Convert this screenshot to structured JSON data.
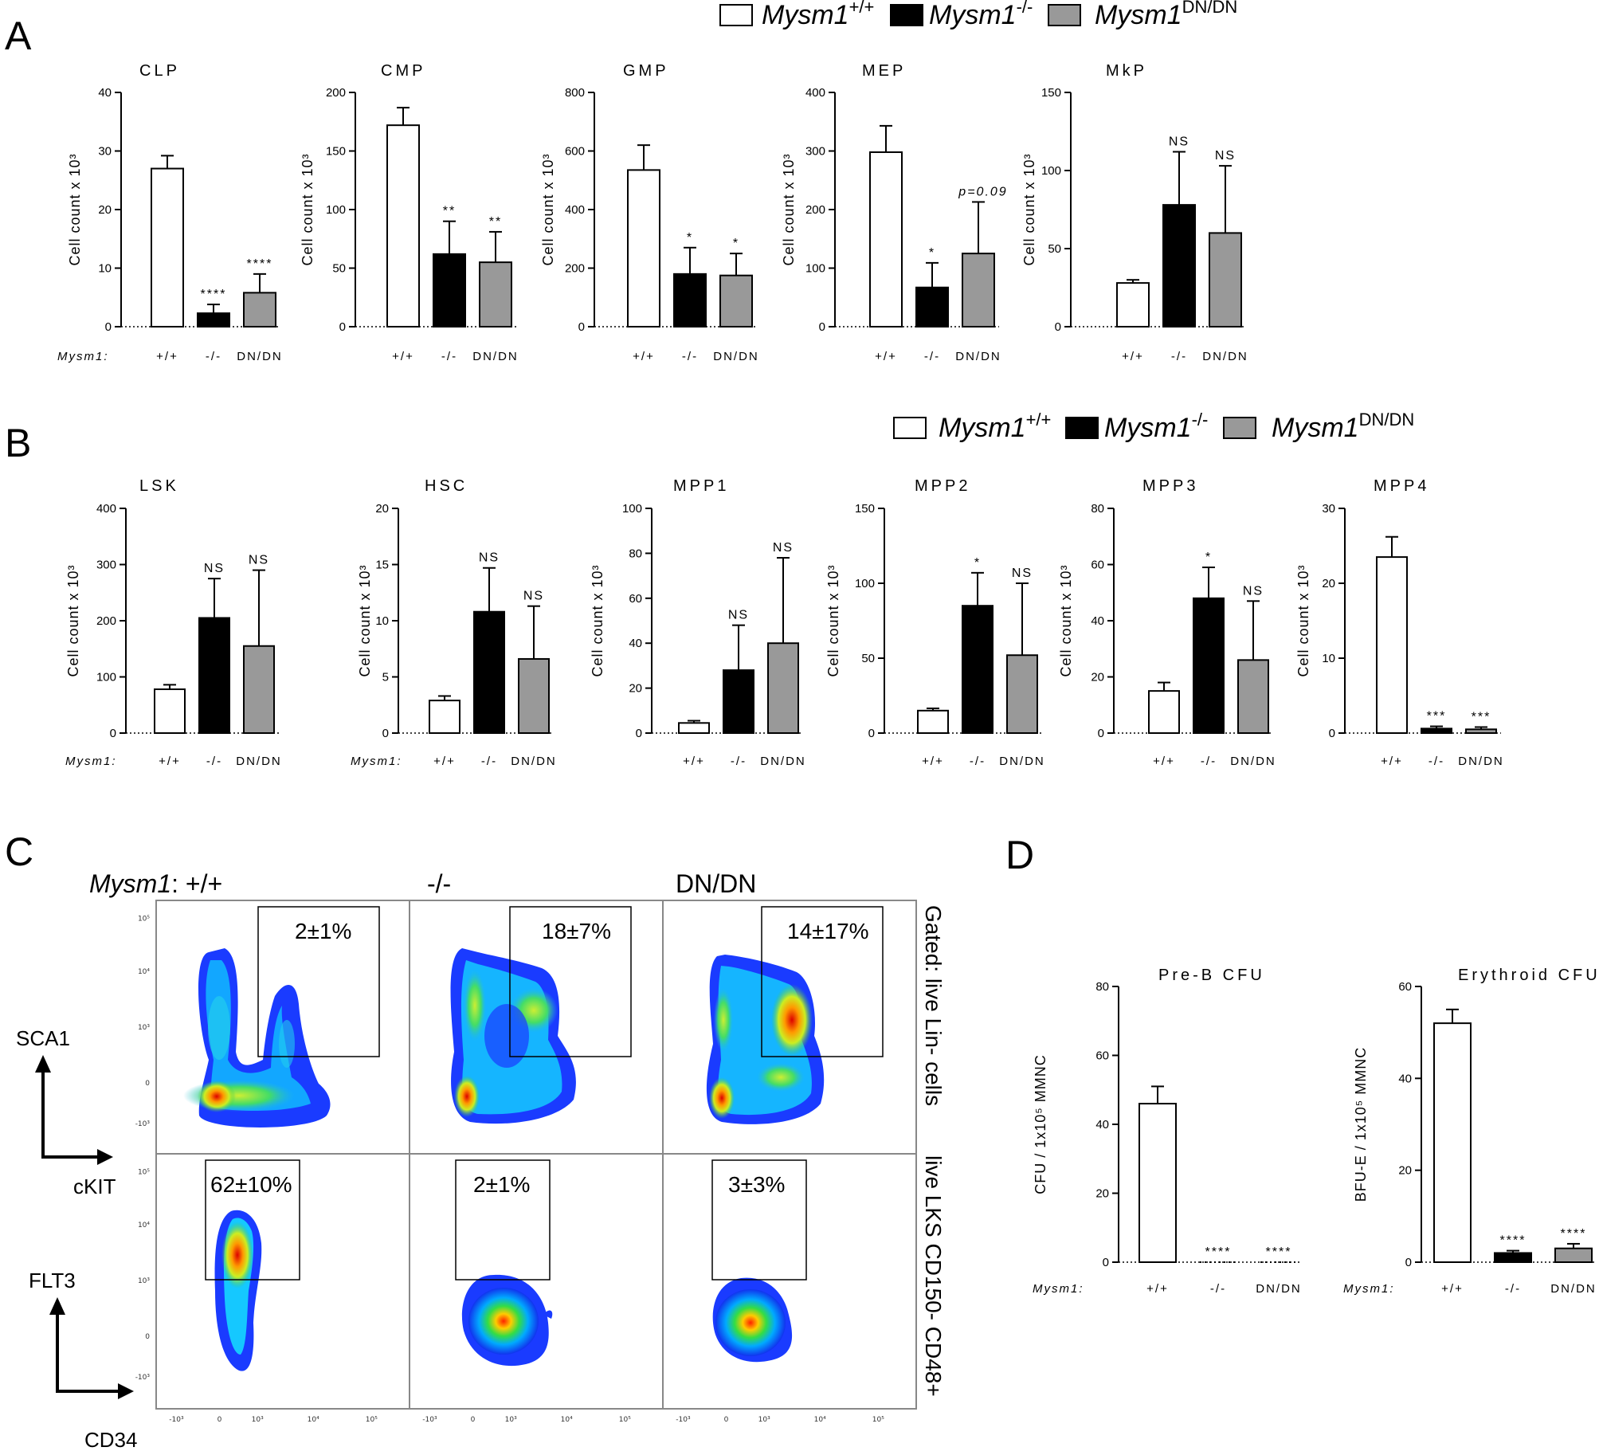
{
  "panel_labels": {
    "A": "A",
    "B": "B",
    "C": "C",
    "D": "D"
  },
  "legend": {
    "gene": "Mysm1",
    "items": [
      {
        "sup": "+/+",
        "color": "#ffffff"
      },
      {
        "sup": "-/-",
        "color": "#000000"
      },
      {
        "sup": "DN/DN",
        "color": "#999999"
      }
    ]
  },
  "genotype_prefix": "Mysm1:",
  "colors": {
    "wt": "#ffffff",
    "ko": "#000000",
    "dn": "#999999"
  },
  "chart_data": [
    {
      "panel": "A",
      "type": "bar",
      "title": "CLP",
      "ylabel": "Cell count x 10³",
      "ylim": [
        0,
        40
      ],
      "yticks": [
        0,
        10,
        20,
        30,
        40
      ],
      "categories": [
        "+/+",
        "-/-",
        "DN/DN"
      ],
      "values": [
        27,
        2.3,
        5.8
      ],
      "errors": [
        2.2,
        1.5,
        3.2
      ],
      "annotations": [
        "",
        "****",
        "****"
      ],
      "show_prefix": true
    },
    {
      "panel": "A",
      "type": "bar",
      "title": "CMP",
      "ylabel": "Cell count x 10³",
      "ylim": [
        0,
        200
      ],
      "yticks": [
        0,
        50,
        100,
        150,
        200
      ],
      "categories": [
        "+/+",
        "-/-",
        "DN/DN"
      ],
      "values": [
        172,
        62,
        55
      ],
      "errors": [
        15,
        28,
        26
      ],
      "annotations": [
        "",
        "**",
        "**"
      ],
      "show_prefix": false
    },
    {
      "panel": "A",
      "type": "bar",
      "title": "GMP",
      "ylabel": "Cell count x 10³",
      "ylim": [
        0,
        800
      ],
      "yticks": [
        0,
        200,
        400,
        600,
        800
      ],
      "categories": [
        "+/+",
        "-/-",
        "DN/DN"
      ],
      "values": [
        535,
        180,
        175
      ],
      "errors": [
        85,
        90,
        75
      ],
      "annotations": [
        "",
        "*",
        "*"
      ],
      "show_prefix": false
    },
    {
      "panel": "A",
      "type": "bar",
      "title": "MEP",
      "ylabel": "Cell count x 10³",
      "ylim": [
        0,
        400
      ],
      "yticks": [
        0,
        100,
        200,
        300,
        400
      ],
      "categories": [
        "+/+",
        "-/-",
        "DN/DN"
      ],
      "values": [
        298,
        67,
        125
      ],
      "errors": [
        45,
        42,
        88
      ],
      "annotations": [
        "",
        "*",
        "p=0.09"
      ],
      "show_prefix": false
    },
    {
      "panel": "A",
      "type": "bar",
      "title": "MkP",
      "ylabel": "Cell count x 10³",
      "ylim": [
        0,
        150
      ],
      "yticks": [
        0,
        50,
        100,
        150
      ],
      "categories": [
        "+/+",
        "-/-",
        "DN/DN"
      ],
      "values": [
        28,
        78,
        60
      ],
      "errors": [
        2,
        34,
        43
      ],
      "annotations": [
        "",
        "NS",
        "NS"
      ],
      "show_prefix": false
    },
    {
      "panel": "B",
      "type": "bar",
      "title": "LSK",
      "ylabel": "Cell count x 10³",
      "ylim": [
        0,
        400
      ],
      "yticks": [
        0,
        100,
        200,
        300,
        400
      ],
      "categories": [
        "+/+",
        "-/-",
        "DN/DN"
      ],
      "values": [
        78,
        205,
        155
      ],
      "errors": [
        8,
        70,
        135
      ],
      "annotations": [
        "",
        "NS",
        "NS"
      ],
      "show_prefix": true
    },
    {
      "panel": "B",
      "type": "bar",
      "title": "HSC",
      "ylabel": "Cell count x 10³",
      "ylim": [
        0,
        20
      ],
      "yticks": [
        0,
        5,
        10,
        15,
        20
      ],
      "categories": [
        "+/+",
        "-/-",
        "DN/DN"
      ],
      "values": [
        2.9,
        10.8,
        6.6
      ],
      "errors": [
        0.4,
        3.9,
        4.7
      ],
      "annotations": [
        "",
        "NS",
        "NS"
      ],
      "show_prefix": true
    },
    {
      "panel": "B",
      "type": "bar",
      "title": "MPP1",
      "ylabel": "Cell count x 10³",
      "ylim": [
        0,
        100
      ],
      "yticks": [
        0,
        20,
        40,
        60,
        80,
        100
      ],
      "categories": [
        "+/+",
        "-/-",
        "DN/DN"
      ],
      "values": [
        4.5,
        28,
        40
      ],
      "errors": [
        1,
        20,
        38
      ],
      "annotations": [
        "",
        "NS",
        "NS"
      ],
      "show_prefix": false
    },
    {
      "panel": "B",
      "type": "bar",
      "title": "MPP2",
      "ylabel": "Cell count x 10³",
      "ylim": [
        0,
        150
      ],
      "yticks": [
        0,
        50,
        100,
        150
      ],
      "categories": [
        "+/+",
        "-/-",
        "DN/DN"
      ],
      "values": [
        15,
        85,
        52
      ],
      "errors": [
        1.5,
        22,
        48
      ],
      "annotations": [
        "",
        "*",
        "NS"
      ],
      "show_prefix": false
    },
    {
      "panel": "B",
      "type": "bar",
      "title": "MPP3",
      "ylabel": "Cell count x 10³",
      "ylim": [
        0,
        80
      ],
      "yticks": [
        0,
        20,
        40,
        60,
        80
      ],
      "categories": [
        "+/+",
        "-/-",
        "DN/DN"
      ],
      "values": [
        15,
        48,
        26
      ],
      "errors": [
        3,
        11,
        21
      ],
      "annotations": [
        "",
        "*",
        "NS"
      ],
      "show_prefix": false
    },
    {
      "panel": "B",
      "type": "bar",
      "title": "MPP4",
      "ylabel": "Cell count x 10³",
      "ylim": [
        0,
        30
      ],
      "yticks": [
        0,
        10,
        20,
        30
      ],
      "categories": [
        "+/+",
        "-/-",
        "DN/DN"
      ],
      "values": [
        23.5,
        0.6,
        0.5
      ],
      "errors": [
        2.7,
        0.3,
        0.3
      ],
      "annotations": [
        "",
        "***",
        "***"
      ],
      "show_prefix": false
    },
    {
      "panel": "D",
      "type": "bar",
      "title": "Pre-B CFU",
      "ylabel": "CFU / 1x10⁵ MMNC",
      "ylim": [
        0,
        80
      ],
      "yticks": [
        0,
        20,
        40,
        60,
        80
      ],
      "categories": [
        "+/+",
        "-/-",
        "DN/DN"
      ],
      "values": [
        46,
        0,
        0
      ],
      "errors": [
        5,
        0,
        0
      ],
      "annotations": [
        "",
        "****",
        "****"
      ],
      "show_prefix": true
    },
    {
      "panel": "D",
      "type": "bar",
      "title": "Erythroid CFU",
      "ylabel": "BFU-E / 1x10⁵ MMNC",
      "ylim": [
        0,
        60
      ],
      "yticks": [
        0,
        20,
        40,
        60
      ],
      "categories": [
        "+/+",
        "-/-",
        "DN/DN"
      ],
      "values": [
        52,
        2,
        3
      ],
      "errors": [
        3,
        0.5,
        1
      ],
      "annotations": [
        "",
        "****",
        "****"
      ],
      "show_prefix": true
    }
  ],
  "flow": {
    "col_headers": [
      "+/+",
      "-/-",
      "DN/DN"
    ],
    "rows": [
      {
        "gate": "Gated: live Lin- cells",
        "x_axis": "cKIT",
        "y_axis": "SCA1",
        "percents": [
          "2±1%",
          "18±7%",
          "14±17%"
        ]
      },
      {
        "gate": "live LKS CD150- CD48+",
        "x_axis": "CD34",
        "y_axis": "FLT3",
        "percents": [
          "62±10%",
          "2±1%",
          "3±3%"
        ]
      }
    ],
    "x_ticks": [
      "-10³",
      "0",
      "10³",
      "10⁴",
      "10⁵"
    ],
    "y_ticks": [
      "10⁵",
      "10⁴",
      "10³",
      "0",
      "-10³"
    ]
  }
}
